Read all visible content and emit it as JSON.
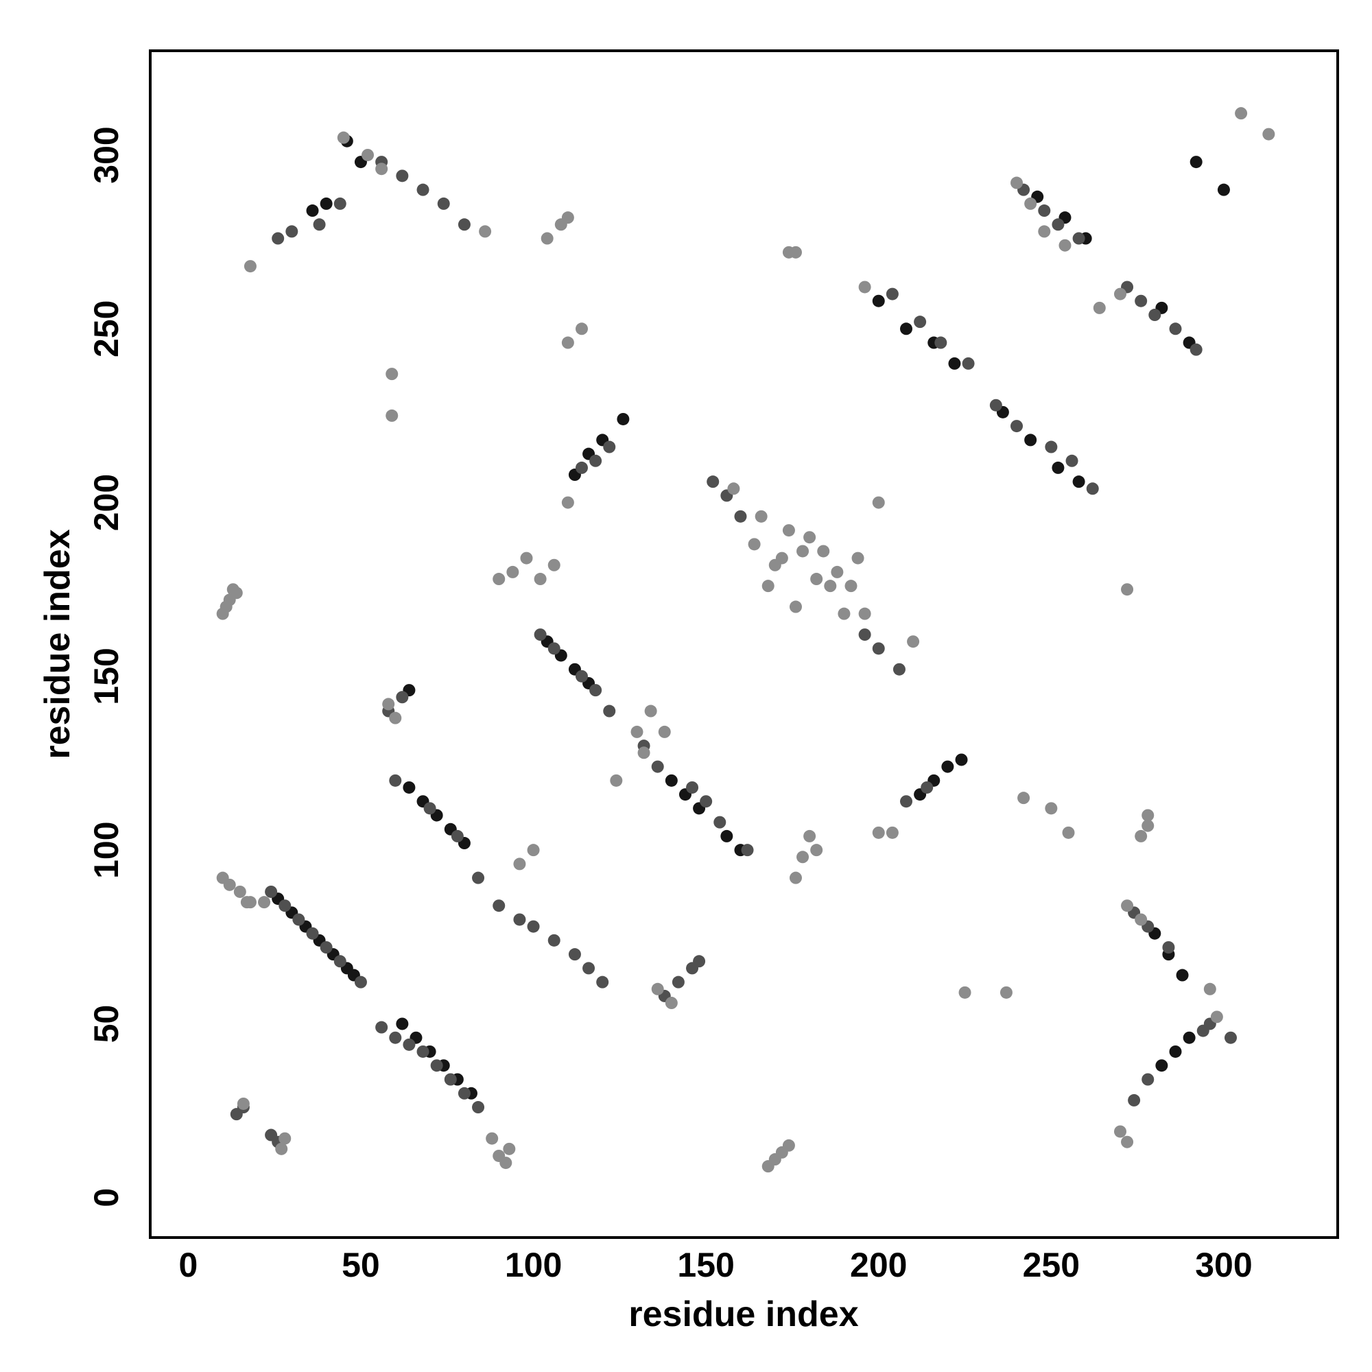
{
  "chart_data": {
    "type": "scatter",
    "xlabel": "residue index",
    "ylabel": "residue index",
    "xlim": [
      -11,
      333
    ],
    "ylim": [
      -11.5,
      330
    ],
    "xticks": [
      0,
      50,
      100,
      150,
      200,
      250,
      300
    ],
    "yticks": [
      0,
      50,
      100,
      150,
      200,
      250,
      300
    ],
    "grid": false,
    "series": [
      {
        "color": "#151515",
        "x": [
          26,
          30,
          34,
          38,
          42,
          46,
          48,
          62,
          66,
          70,
          74,
          78,
          82,
          64,
          68,
          72,
          76,
          80,
          104,
          108,
          112,
          116,
          140,
          144,
          148,
          156,
          160,
          236,
          244,
          252,
          258,
          200,
          208,
          216,
          222,
          246,
          254,
          260,
          282,
          290,
          112,
          116,
          120,
          126,
          212,
          216,
          220,
          224,
          280,
          284,
          288,
          282,
          286,
          290,
          46,
          50,
          36,
          40,
          292,
          300,
          64
        ],
        "values": [
          86,
          82,
          78,
          74,
          70,
          66,
          64,
          50,
          46,
          42,
          38,
          34,
          30,
          118,
          114,
          110,
          106,
          102,
          160,
          156,
          152,
          148,
          120,
          116,
          112,
          104,
          100,
          226,
          218,
          210,
          206,
          258,
          250,
          246,
          240,
          288,
          282,
          276,
          256,
          246,
          208,
          214,
          218,
          224,
          116,
          120,
          124,
          126,
          76,
          70,
          64,
          38,
          42,
          46,
          304,
          298,
          284,
          286,
          298,
          290,
          146
        ]
      },
      {
        "color": "#505050",
        "x": [
          24,
          28,
          32,
          36,
          40,
          44,
          50,
          56,
          60,
          64,
          68,
          72,
          76,
          80,
          84,
          60,
          70,
          78,
          84,
          90,
          96,
          100,
          106,
          112,
          116,
          120,
          102,
          106,
          114,
          118,
          122,
          132,
          136,
          146,
          150,
          154,
          162,
          152,
          156,
          160,
          196,
          200,
          206,
          204,
          212,
          218,
          226,
          234,
          240,
          250,
          256,
          262,
          242,
          248,
          252,
          258,
          272,
          276,
          280,
          286,
          292,
          26,
          30,
          38,
          44,
          56,
          62,
          68,
          74,
          80,
          114,
          118,
          122,
          208,
          214,
          274,
          278,
          284,
          274,
          278,
          14,
          16,
          24,
          26,
          138,
          142,
          146,
          148,
          294,
          296,
          302,
          58,
          62
        ],
        "values": [
          88,
          84,
          80,
          76,
          72,
          68,
          62,
          49,
          46,
          44,
          42,
          38,
          34,
          30,
          26,
          120,
          112,
          104,
          92,
          84,
          80,
          78,
          74,
          70,
          66,
          62,
          162,
          158,
          150,
          146,
          140,
          130,
          124,
          118,
          114,
          108,
          100,
          206,
          202,
          196,
          162,
          158,
          152,
          260,
          252,
          246,
          240,
          228,
          222,
          216,
          212,
          204,
          290,
          284,
          280,
          276,
          262,
          258,
          254,
          250,
          244,
          276,
          278,
          280,
          286,
          298,
          294,
          290,
          286,
          280,
          210,
          212,
          216,
          114,
          118,
          82,
          78,
          72,
          28,
          34,
          24,
          26,
          18,
          16,
          58,
          62,
          66,
          68,
          48,
          50,
          46,
          140,
          144
        ]
      },
      {
        "color": "#8c8c8c",
        "x": [
          10,
          12,
          14,
          11,
          13,
          10,
          12,
          15,
          17,
          18,
          28,
          16,
          27,
          88,
          90,
          92,
          93,
          168,
          170,
          172,
          174,
          176,
          178,
          180,
          182,
          136,
          140,
          90,
          94,
          98,
          102,
          106,
          104,
          108,
          110,
          110,
          114,
          59,
          59,
          174,
          272,
          305,
          313,
          22,
          18,
          45,
          52,
          56,
          86,
          96,
          100,
          110,
          124,
          158,
          166,
          164,
          170,
          176,
          186,
          190,
          194,
          200,
          210,
          180,
          184,
          188,
          192,
          196,
          168,
          172,
          174,
          178,
          182,
          196,
          240,
          248,
          264,
          270,
          244,
          254,
          272,
          276,
          278,
          296,
          298,
          225,
          237,
          242,
          250,
          255,
          276,
          278,
          200,
          204,
          134,
          138,
          272,
          270,
          60,
          58,
          176,
          130,
          132
        ],
        "values": [
          168,
          172,
          174,
          170,
          175,
          92,
          90,
          88,
          85,
          85,
          17,
          27,
          14,
          17,
          12,
          10,
          14,
          9,
          11,
          13,
          15,
          92,
          98,
          104,
          100,
          60,
          56,
          178,
          180,
          184,
          178,
          182,
          276,
          280,
          282,
          246,
          250,
          225,
          237,
          272,
          175,
          312,
          306,
          85,
          268,
          305,
          300,
          296,
          278,
          96,
          100,
          200,
          120,
          204,
          196,
          188,
          182,
          170,
          176,
          168,
          184,
          200,
          160,
          190,
          186,
          180,
          176,
          168,
          176,
          184,
          192,
          186,
          178,
          262,
          292,
          278,
          256,
          260,
          286,
          274,
          84,
          80,
          107,
          60,
          52,
          59,
          59,
          115,
          112,
          105,
          104,
          110,
          105,
          105,
          140,
          134,
          16,
          19,
          138,
          142,
          272,
          134,
          128
        ]
      }
    ]
  }
}
